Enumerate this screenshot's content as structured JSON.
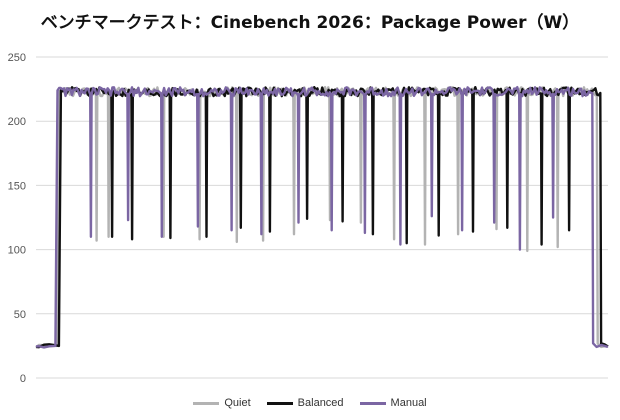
{
  "chart_data": {
    "type": "line",
    "title": "ベンチマークテスト：Cinebench 2026：Package Power（W）",
    "xlabel": "",
    "ylabel": "",
    "ylim": [
      0,
      250
    ],
    "yticks": [
      0,
      50,
      100,
      150,
      200,
      250
    ],
    "grid": true,
    "legend_position": "bottom",
    "idle_value": 25,
    "load_value": 223,
    "series": [
      {
        "name": "Quiet",
        "color": "#b3b3b3",
        "rise_x": 3.6,
        "fall_x": 98.2,
        "dips": [
          [
            10.6,
            107
          ],
          [
            12.7,
            110
          ],
          [
            22.3,
            110
          ],
          [
            28.6,
            108
          ],
          [
            35.1,
            106
          ],
          [
            39.7,
            107
          ],
          [
            45.1,
            112
          ],
          [
            51.4,
            123
          ],
          [
            56.8,
            121
          ],
          [
            62.6,
            108
          ],
          [
            68.0,
            104
          ],
          [
            73.8,
            112
          ],
          [
            80.5,
            116
          ],
          [
            85.9,
            99
          ],
          [
            91.2,
            102
          ]
        ]
      },
      {
        "name": "Balanced",
        "color": "#111111",
        "rise_x": 4.0,
        "fall_x": 98.8,
        "dips": [
          [
            13.3,
            110
          ],
          [
            16.8,
            108
          ],
          [
            23.5,
            109
          ],
          [
            29.8,
            110
          ],
          [
            35.8,
            117
          ],
          [
            40.9,
            114
          ],
          [
            47.4,
            124
          ],
          [
            53.6,
            122
          ],
          [
            58.9,
            112
          ],
          [
            64.8,
            105
          ],
          [
            70.4,
            111
          ],
          [
            76.4,
            114
          ],
          [
            82.4,
            117
          ],
          [
            88.4,
            104
          ],
          [
            93.2,
            115
          ]
        ]
      },
      {
        "name": "Manual",
        "color": "#7b66a3",
        "rise_x": 3.4,
        "fall_x": 97.4,
        "dips": [
          [
            9.6,
            110
          ],
          [
            16.1,
            123
          ],
          [
            22.0,
            110
          ],
          [
            28.3,
            118
          ],
          [
            34.2,
            115
          ],
          [
            39.4,
            112
          ],
          [
            45.9,
            121
          ],
          [
            51.7,
            115
          ],
          [
            57.5,
            113
          ],
          [
            63.7,
            104
          ],
          [
            69.2,
            126
          ],
          [
            74.5,
            115
          ],
          [
            80.1,
            121
          ],
          [
            84.6,
            100
          ],
          [
            90.4,
            125
          ]
        ]
      }
    ]
  }
}
